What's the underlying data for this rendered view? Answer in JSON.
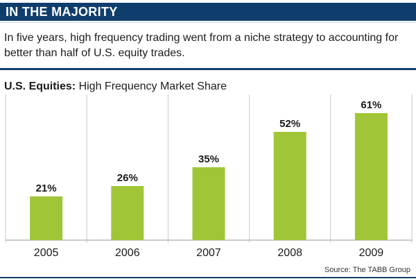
{
  "header": {
    "title": "IN THE MAJORITY",
    "intro": "In five years, high frequency trading went from a niche strategy to accounting for better than half of U.S. equity trades."
  },
  "chart_heading": {
    "bold": "U.S. Equities:",
    "rest": " High Frequency Market Share"
  },
  "source": "Source: The TABB Group",
  "colors": {
    "bar": "#a0c638",
    "grid": "#c8c8c8",
    "brand": "#0f3e6d"
  },
  "chart_data": {
    "type": "bar",
    "title": "U.S. Equities: High Frequency Market Share",
    "categories": [
      "2005",
      "2006",
      "2007",
      "2008",
      "2009"
    ],
    "values": [
      21,
      26,
      35,
      52,
      61
    ],
    "value_labels": [
      "21%",
      "26%",
      "35%",
      "52%",
      "61%"
    ],
    "unit": "%",
    "xlabel": "",
    "ylabel": "",
    "ylim": [
      0,
      70
    ],
    "grid": "vertical separators between categories"
  }
}
